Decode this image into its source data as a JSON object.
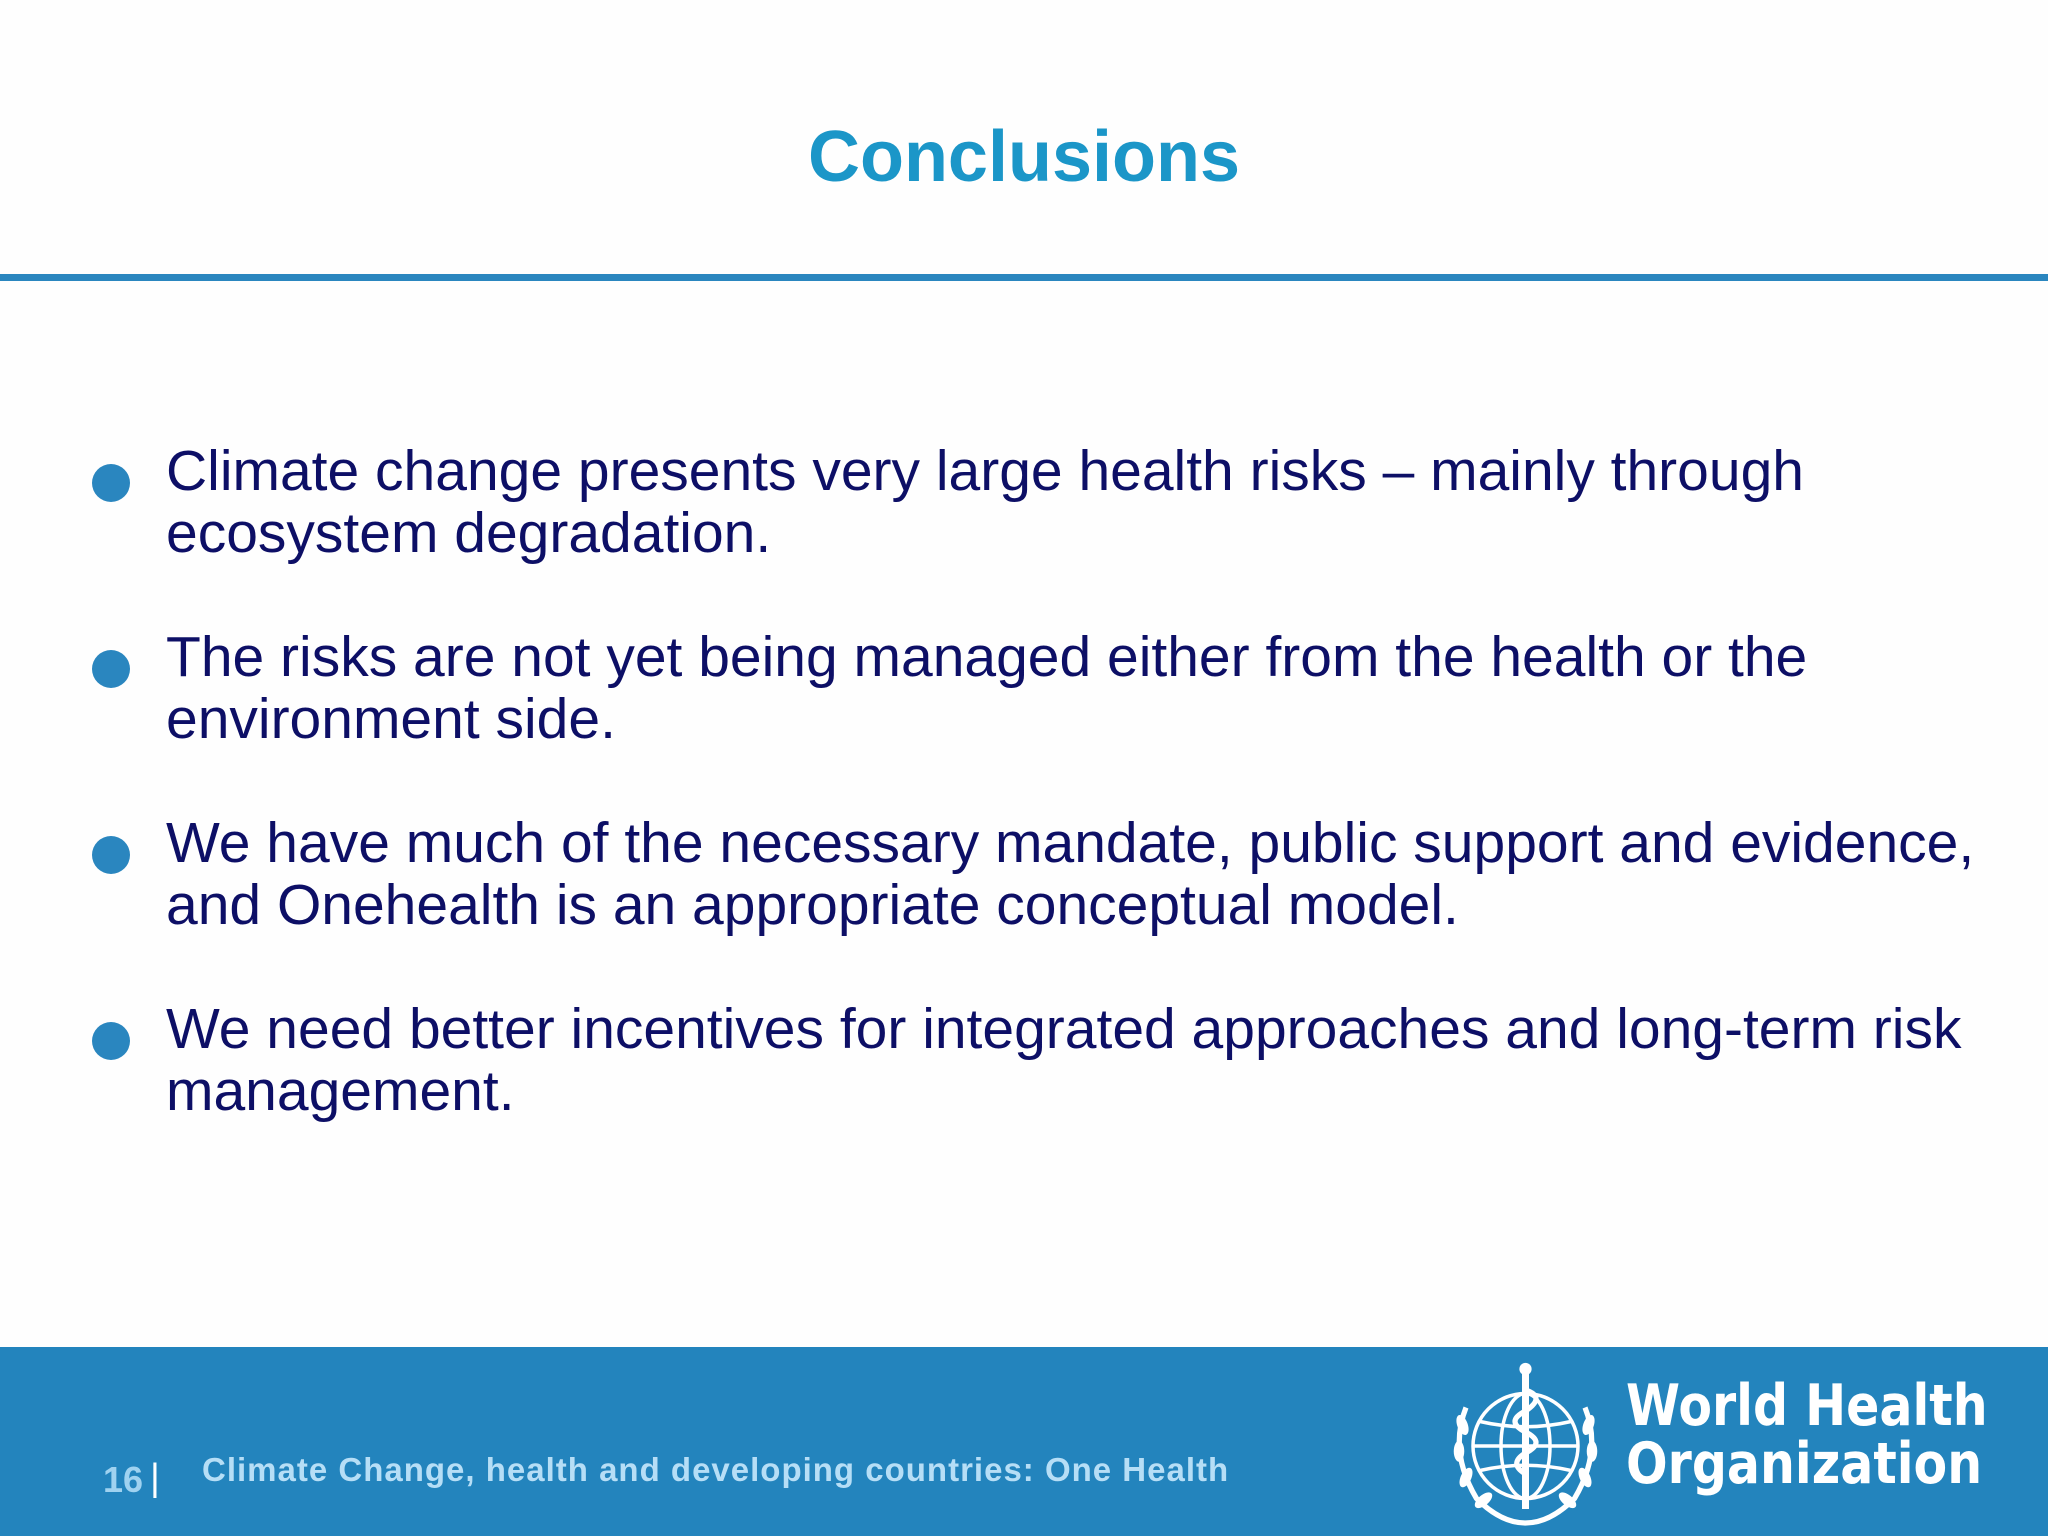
{
  "slide": {
    "title": "Conclusions",
    "bullets": [
      "Climate change presents very large health risks – mainly through ecosystem degradation.",
      "The risks are not yet being managed either from the health or the environment side.",
      "We have much of the necessary mandate, public support and evidence, and Onehealth is an appropriate conceptual model.",
      "We need better incentives for integrated approaches and long-term risk management."
    ]
  },
  "footer": {
    "page_number": "16",
    "separator": "|",
    "caption": "Climate Change, health and developing countries: One Health",
    "organization_line1": "World Health",
    "organization_line2": "Organization"
  },
  "colors": {
    "title": "#1b96c8",
    "bullet_text": "#0d0f66",
    "accent": "#2a86bf",
    "footer_bg": "#2384bd"
  },
  "icons": {
    "bullet": "filled-circle",
    "logo": "who-emblem"
  }
}
